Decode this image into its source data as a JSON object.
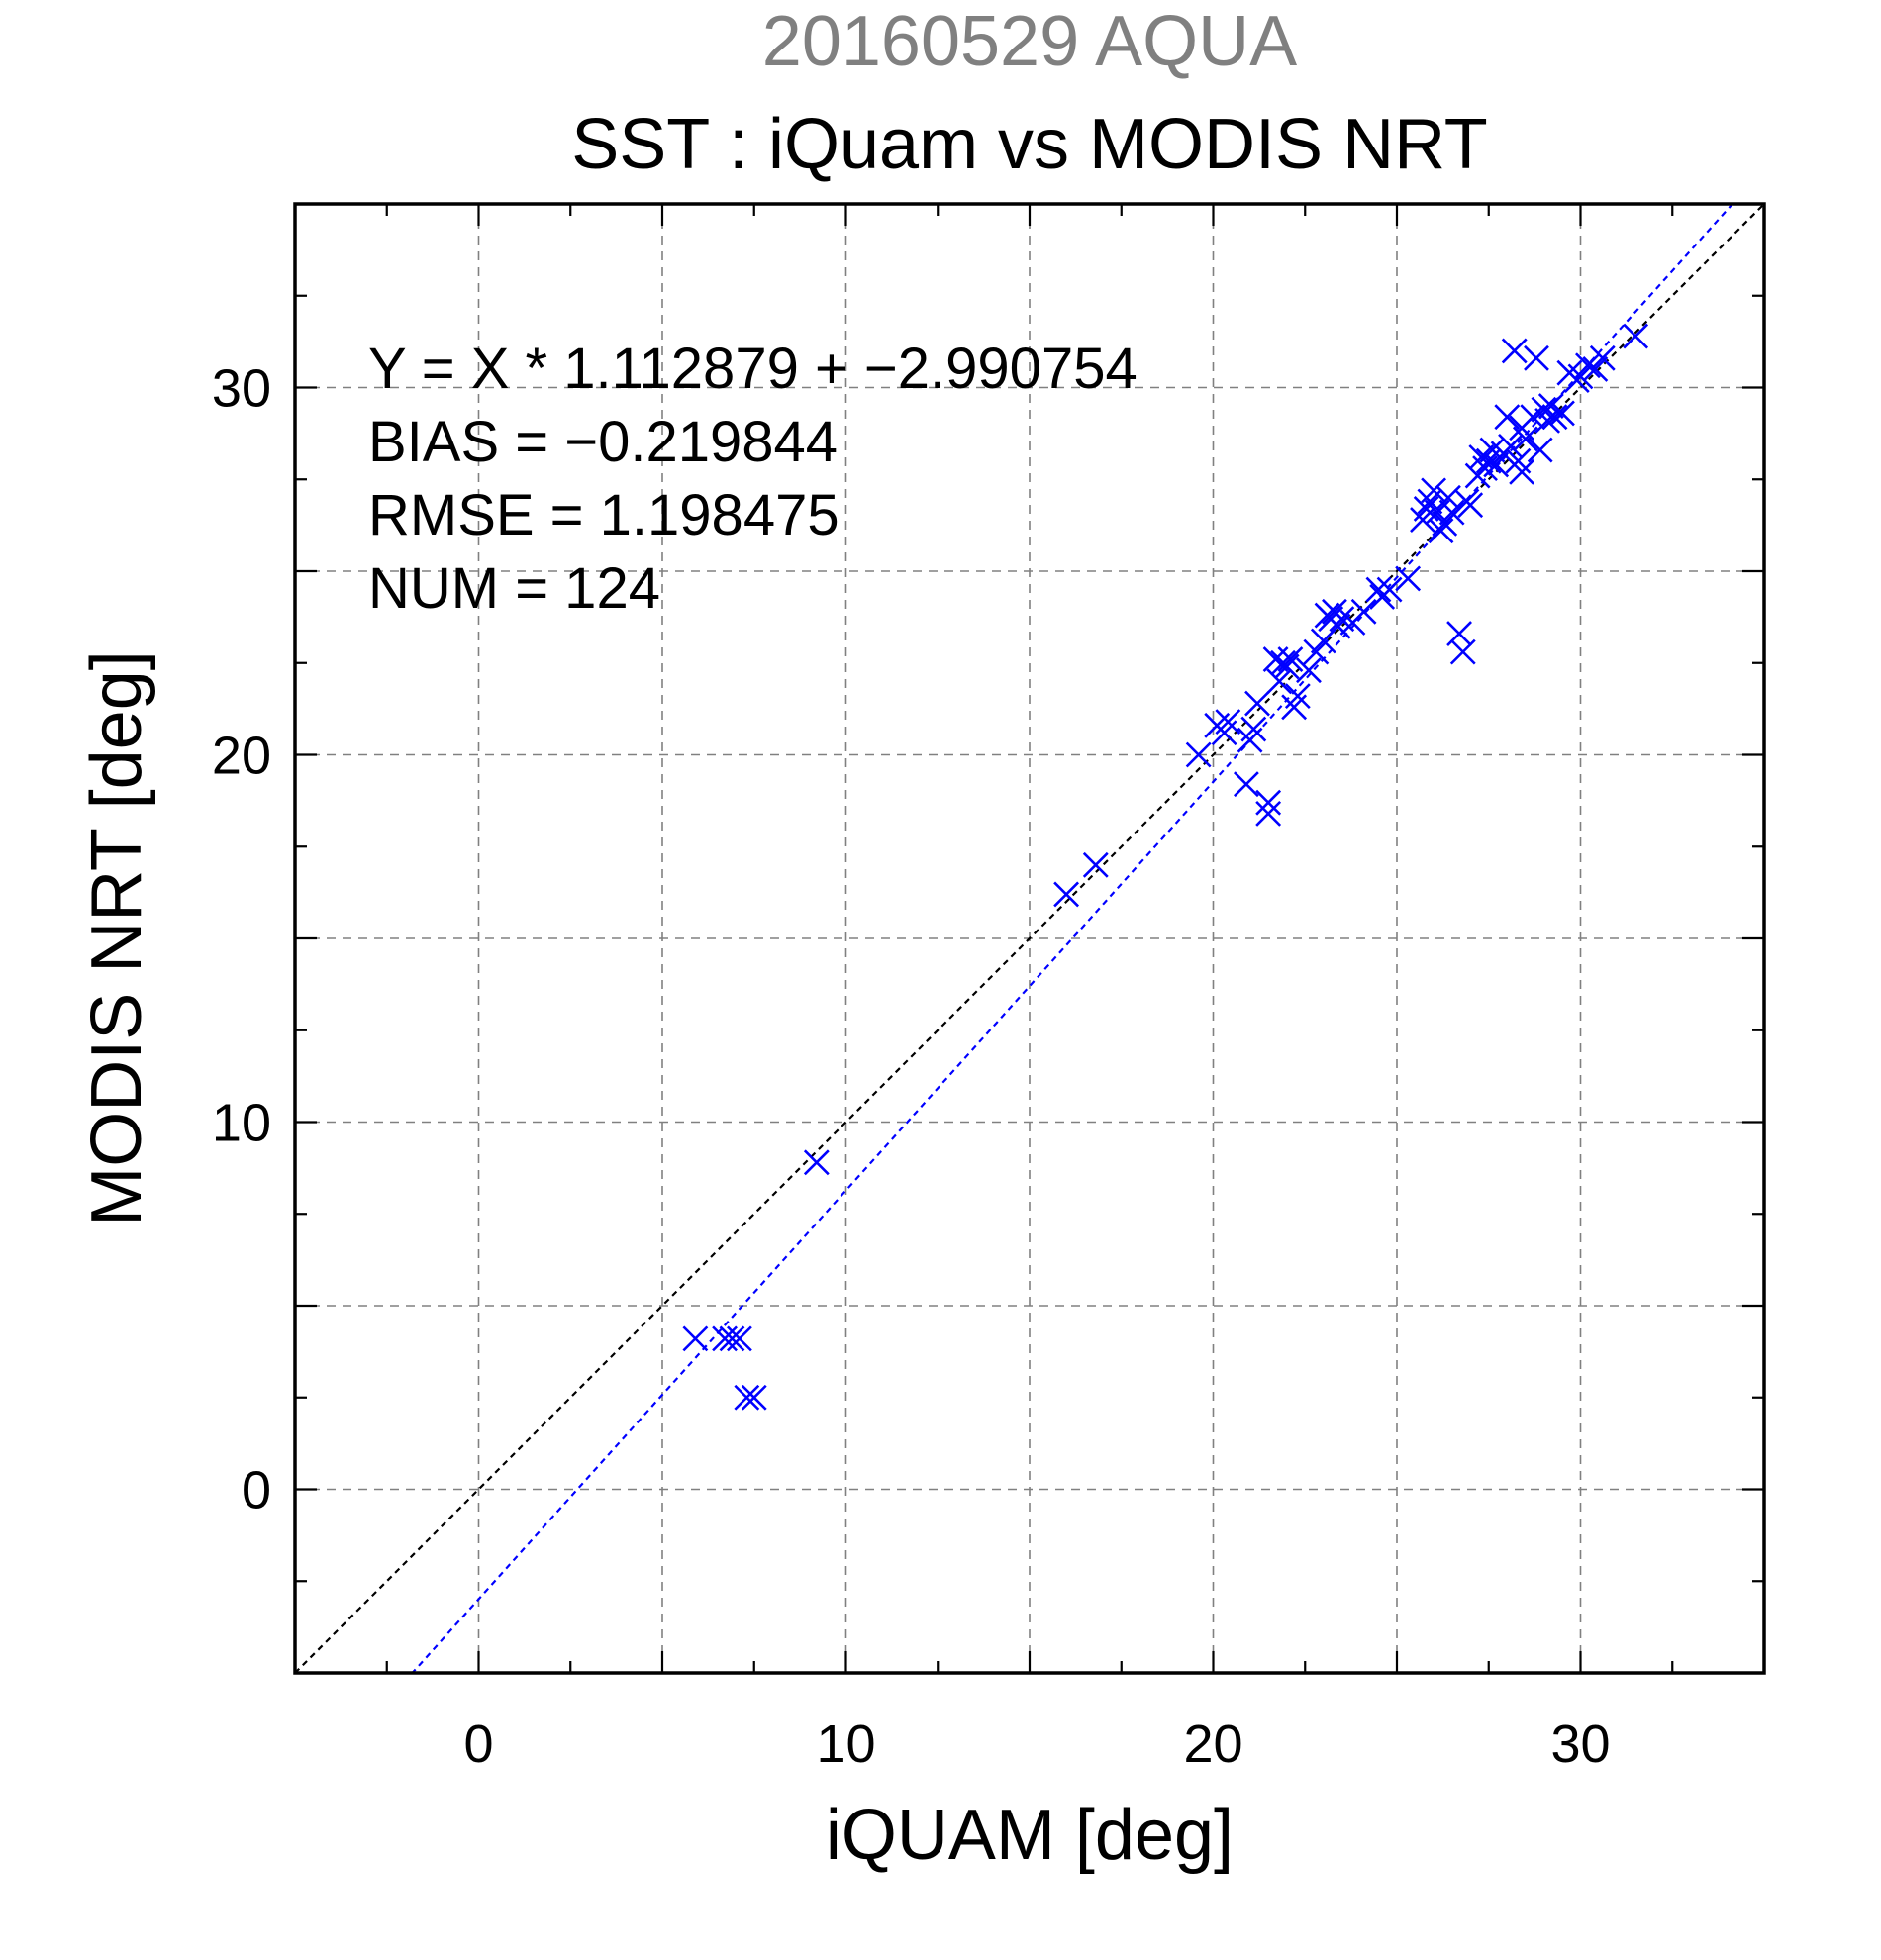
{
  "header": {
    "date_sensor": "20160529 AQUA"
  },
  "chart_data": {
    "type": "scatter",
    "title": "SST : iQuam vs MODIS NRT",
    "xlabel": "iQUAM [deg]",
    "ylabel": "MODIS NRT [deg]",
    "xlim": [
      -5,
      35
    ],
    "ylim": [
      -5,
      35
    ],
    "xticks": [
      0,
      10,
      20,
      30
    ],
    "yticks": [
      0,
      10,
      20,
      30
    ],
    "grid": true,
    "marker": "x",
    "colors": {
      "points": "#0000ff",
      "fit_line": "#0000ff",
      "identity_line": "#000000",
      "grid": "#808080"
    },
    "annotations": [
      "Y = X * 1.112879 + −2.990754",
      "BIAS = −0.219844",
      "RMSE = 1.198475",
      "NUM = 124"
    ],
    "fit": {
      "slope": 1.112879,
      "intercept": -2.990754
    },
    "identity_line": true,
    "points": [
      [
        5.9,
        4.1
      ],
      [
        6.7,
        4.1
      ],
      [
        6.9,
        4.1
      ],
      [
        7.1,
        4.1
      ],
      [
        7.3,
        2.5
      ],
      [
        7.5,
        2.5
      ],
      [
        9.2,
        8.9
      ],
      [
        16.0,
        16.2
      ],
      [
        16.8,
        17.0
      ],
      [
        19.6,
        20.0
      ],
      [
        20.1,
        20.8
      ],
      [
        20.3,
        20.6
      ],
      [
        20.4,
        20.9
      ],
      [
        20.9,
        19.2
      ],
      [
        21.0,
        20.4
      ],
      [
        21.1,
        20.7
      ],
      [
        21.2,
        21.4
      ],
      [
        21.5,
        18.4
      ],
      [
        21.5,
        18.7
      ],
      [
        21.7,
        22.6
      ],
      [
        21.8,
        22.0
      ],
      [
        21.9,
        22.5
      ],
      [
        22.0,
        22.4
      ],
      [
        22.1,
        22.6
      ],
      [
        22.2,
        21.3
      ],
      [
        22.3,
        21.6
      ],
      [
        22.6,
        22.3
      ],
      [
        22.8,
        22.8
      ],
      [
        23.0,
        23.1
      ],
      [
        23.1,
        23.8
      ],
      [
        23.2,
        23.7
      ],
      [
        23.3,
        23.9
      ],
      [
        23.4,
        23.5
      ],
      [
        23.5,
        23.7
      ],
      [
        23.8,
        23.6
      ],
      [
        24.1,
        23.9
      ],
      [
        24.5,
        24.5
      ],
      [
        24.6,
        24.3
      ],
      [
        24.8,
        24.5
      ],
      [
        25.3,
        24.8
      ],
      [
        25.7,
        26.4
      ],
      [
        25.8,
        26.7
      ],
      [
        25.9,
        26.9
      ],
      [
        26.0,
        27.2
      ],
      [
        26.1,
        26.6
      ],
      [
        26.2,
        26.1
      ],
      [
        26.3,
        26.3
      ],
      [
        26.4,
        27.0
      ],
      [
        26.5,
        26.6
      ],
      [
        26.7,
        23.3
      ],
      [
        26.8,
        22.8
      ],
      [
        26.9,
        26.9
      ],
      [
        27.0,
        26.8
      ],
      [
        27.2,
        27.6
      ],
      [
        27.3,
        28.1
      ],
      [
        27.4,
        27.8
      ],
      [
        27.5,
        28.0
      ],
      [
        27.6,
        28.3
      ],
      [
        27.7,
        27.9
      ],
      [
        27.9,
        28.2
      ],
      [
        28.0,
        29.2
      ],
      [
        28.1,
        28.4
      ],
      [
        28.2,
        31.0
      ],
      [
        28.3,
        28.0
      ],
      [
        28.4,
        27.7
      ],
      [
        28.4,
        28.9
      ],
      [
        28.5,
        28.6
      ],
      [
        28.7,
        29.2
      ],
      [
        28.8,
        30.8
      ],
      [
        28.9,
        28.3
      ],
      [
        29.0,
        29.4
      ],
      [
        29.1,
        29.1
      ],
      [
        29.2,
        29.5
      ],
      [
        29.3,
        29.2
      ],
      [
        29.5,
        29.3
      ],
      [
        29.7,
        30.4
      ],
      [
        29.9,
        30.2
      ],
      [
        30.0,
        30.3
      ],
      [
        30.2,
        30.6
      ],
      [
        30.4,
        30.5
      ],
      [
        30.6,
        30.8
      ],
      [
        31.5,
        31.4
      ]
    ]
  }
}
